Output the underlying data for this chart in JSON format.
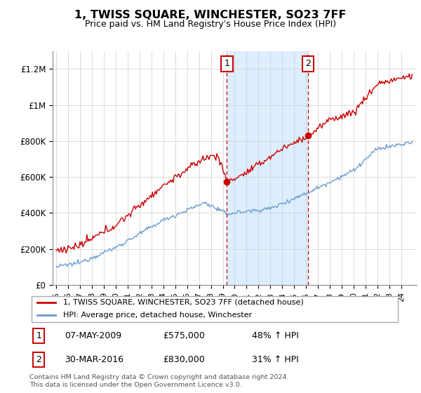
{
  "title": "1, TWISS SQUARE, WINCHESTER, SO23 7FF",
  "subtitle": "Price paid vs. HM Land Registry's House Price Index (HPI)",
  "legend_line1": "1, TWISS SQUARE, WINCHESTER, SO23 7FF (detached house)",
  "legend_line2": "HPI: Average price, detached house, Winchester",
  "sale1_date": "07-MAY-2009",
  "sale1_price": 575000,
  "sale1_label": "48% ↑ HPI",
  "sale2_date": "30-MAR-2016",
  "sale2_price": 830000,
  "sale2_label": "31% ↑ HPI",
  "footnote": "Contains HM Land Registry data © Crown copyright and database right 2024.\nThis data is licensed under the Open Government Licence v3.0.",
  "red_color": "#cc0000",
  "blue_color": "#6699cc",
  "shading_color": "#ddeeff",
  "ylim": [
    0,
    1300000
  ],
  "yticks": [
    0,
    200000,
    400000,
    600000,
    800000,
    1000000,
    1200000
  ],
  "ytick_labels": [
    "£0",
    "£200K",
    "£400K",
    "£600K",
    "£800K",
    "£1M",
    "£1.2M"
  ]
}
